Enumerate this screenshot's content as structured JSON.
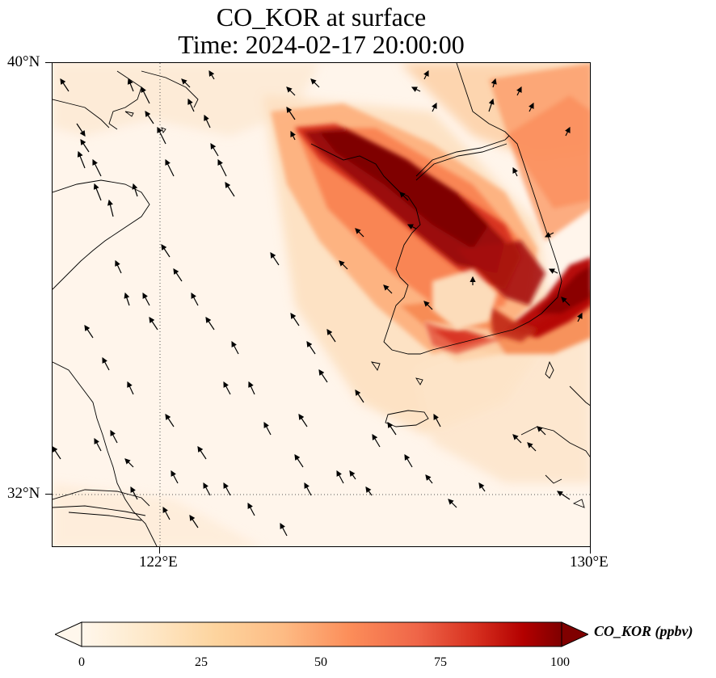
{
  "title": {
    "line1": "CO_KOR at surface",
    "line2": "Time: 2024-02-17 20:00:00"
  },
  "axes": {
    "lat_labels": [
      "40°N",
      "32°N"
    ],
    "lon_labels": [
      "122°E",
      "130°E"
    ],
    "extent": {
      "lon": [
        120,
        130
      ],
      "lat": [
        31,
        40
      ]
    },
    "gridlines": {
      "lon": [
        122
      ],
      "lat": [
        32
      ],
      "style": "dotted"
    }
  },
  "colorbar": {
    "label": "CO_KOR (ppbv)",
    "ticks": [
      "0",
      "25",
      "50",
      "75",
      "100"
    ],
    "range": [
      0,
      100
    ],
    "extend": "both",
    "colormap": "OrRd",
    "colors": [
      "#fff7ec",
      "#fee8c8",
      "#fdd49e",
      "#fdbb84",
      "#fc8d59",
      "#ef6548",
      "#d7301f",
      "#b30000",
      "#7f0000"
    ]
  },
  "chart_data": {
    "type": "heatmap",
    "variable": "CO_KOR",
    "units": "ppbv",
    "level": "surface",
    "time": "2024-02-17 20:00:00",
    "extent": {
      "lon": [
        120,
        130
      ],
      "lat": [
        31,
        40
      ]
    },
    "plume_description": "High CO concentration band (>100 ppbv) extending NW-SE from the northwest Korean Peninsula coast across Seoul region toward the southern Korean coast; moderate values (25-60 ppbv) over northeast corner and surrounding areas; low background (<10 ppbv) over Yellow Sea and China.",
    "wind_vectors": "prevailing north-northwesterly flow across the domain"
  }
}
